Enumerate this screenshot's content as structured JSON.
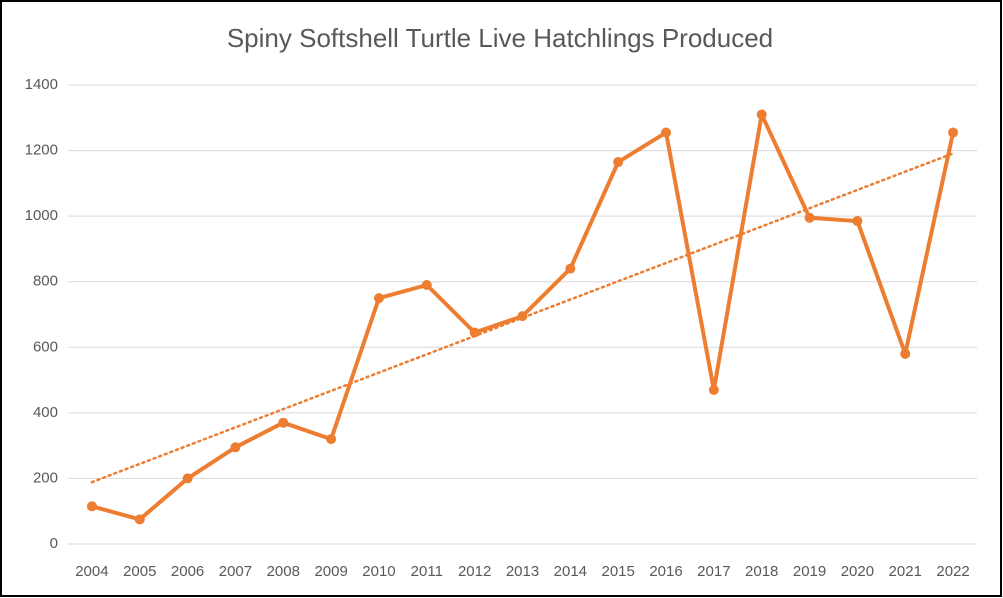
{
  "chart_data": {
    "type": "line",
    "title": "Spiny Softshell Turtle Live Hatchlings Produced",
    "categories": [
      "2004",
      "2005",
      "2006",
      "2007",
      "2008",
      "2009",
      "2010",
      "2011",
      "2012",
      "2013",
      "2014",
      "2015",
      "2016",
      "2017",
      "2018",
      "2019",
      "2020",
      "2021",
      "2022"
    ],
    "values": [
      115,
      75,
      200,
      295,
      370,
      320,
      750,
      790,
      645,
      695,
      840,
      1165,
      1255,
      470,
      1310,
      995,
      985,
      580,
      1255
    ],
    "color": "#ed7d31",
    "ylim": [
      0,
      1400
    ],
    "yticks": [
      0,
      200,
      400,
      600,
      800,
      1000,
      1200,
      1400
    ],
    "grid": true,
    "trendline": "linear"
  }
}
